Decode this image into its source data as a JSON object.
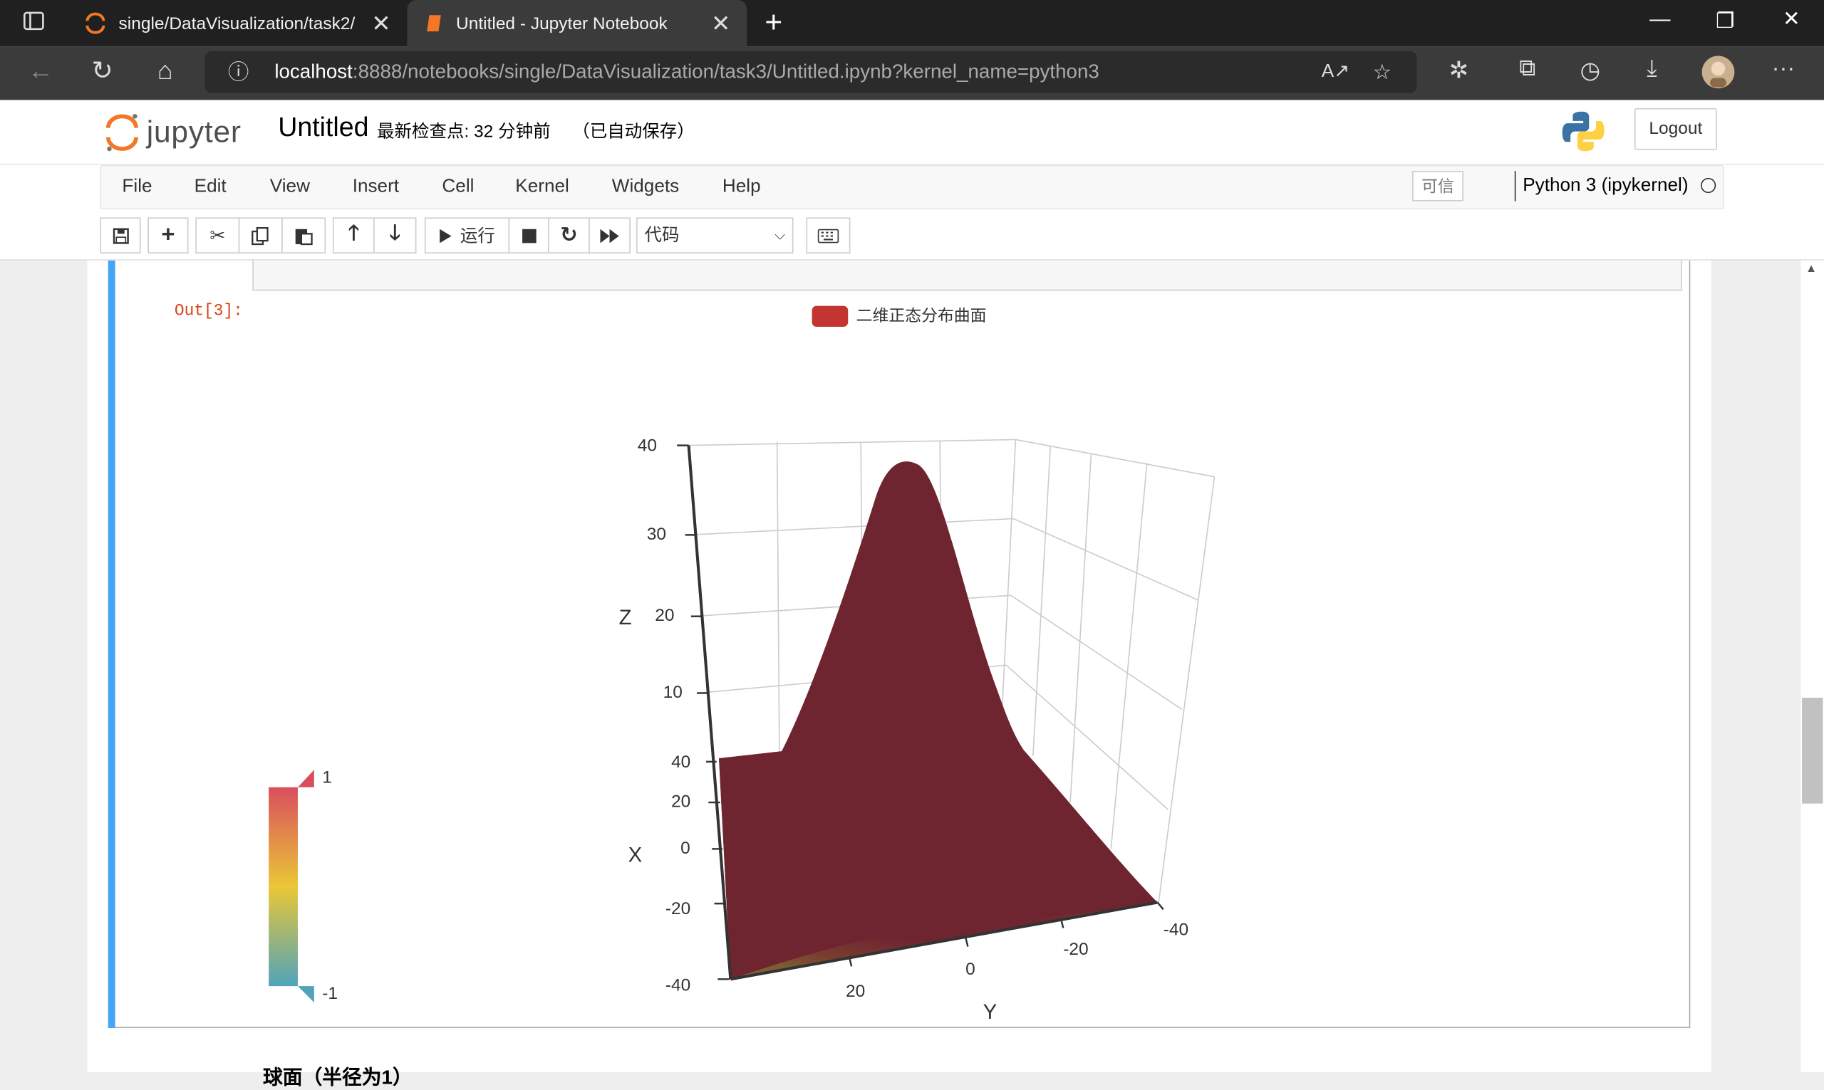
{
  "browser": {
    "tabs": [
      {
        "title": "single/DataVisualization/task2/"
      },
      {
        "title": "Untitled - Jupyter Notebook"
      }
    ],
    "url_host": "localhost",
    "url_rest": ":8888/notebooks/single/DataVisualization/task3/Untitled.ipynb?kernel_name=python3"
  },
  "jupyter": {
    "logo_text": "jupyter",
    "notebook_name": "Untitled",
    "checkpoint": "最新检查点: 32 分钟前",
    "autosave": "（已自动保存）",
    "logout_label": "Logout",
    "menu": [
      "File",
      "Edit",
      "View",
      "Insert",
      "Cell",
      "Kernel",
      "Widgets",
      "Help"
    ],
    "trusted": "可信",
    "kernel_name": "Python 3 (ipykernel)",
    "toolbar": {
      "run_label": "运行",
      "cell_type": "代码"
    },
    "out_prompt": "Out[3]:",
    "below_text": "球面（半径为1）"
  },
  "chart_data": {
    "type": "surface3d",
    "legend": [
      "二维正态分布曲面"
    ],
    "legend_color": "#c23531",
    "zlabel": "Z",
    "xlabel": "X",
    "ylabel": "Y",
    "z_ticks": [
      "40",
      "30",
      "20",
      "10"
    ],
    "x_ticks": [
      "40",
      "20",
      "0",
      "-20",
      "-40"
    ],
    "y_ticks": [
      "-40",
      "-20",
      "0",
      "20"
    ],
    "visualmap": {
      "max": "1",
      "min": "-1",
      "colors": [
        "#d94e5d",
        "#eac736",
        "#50a3ba"
      ]
    },
    "surface_color": "#6e2530"
  }
}
